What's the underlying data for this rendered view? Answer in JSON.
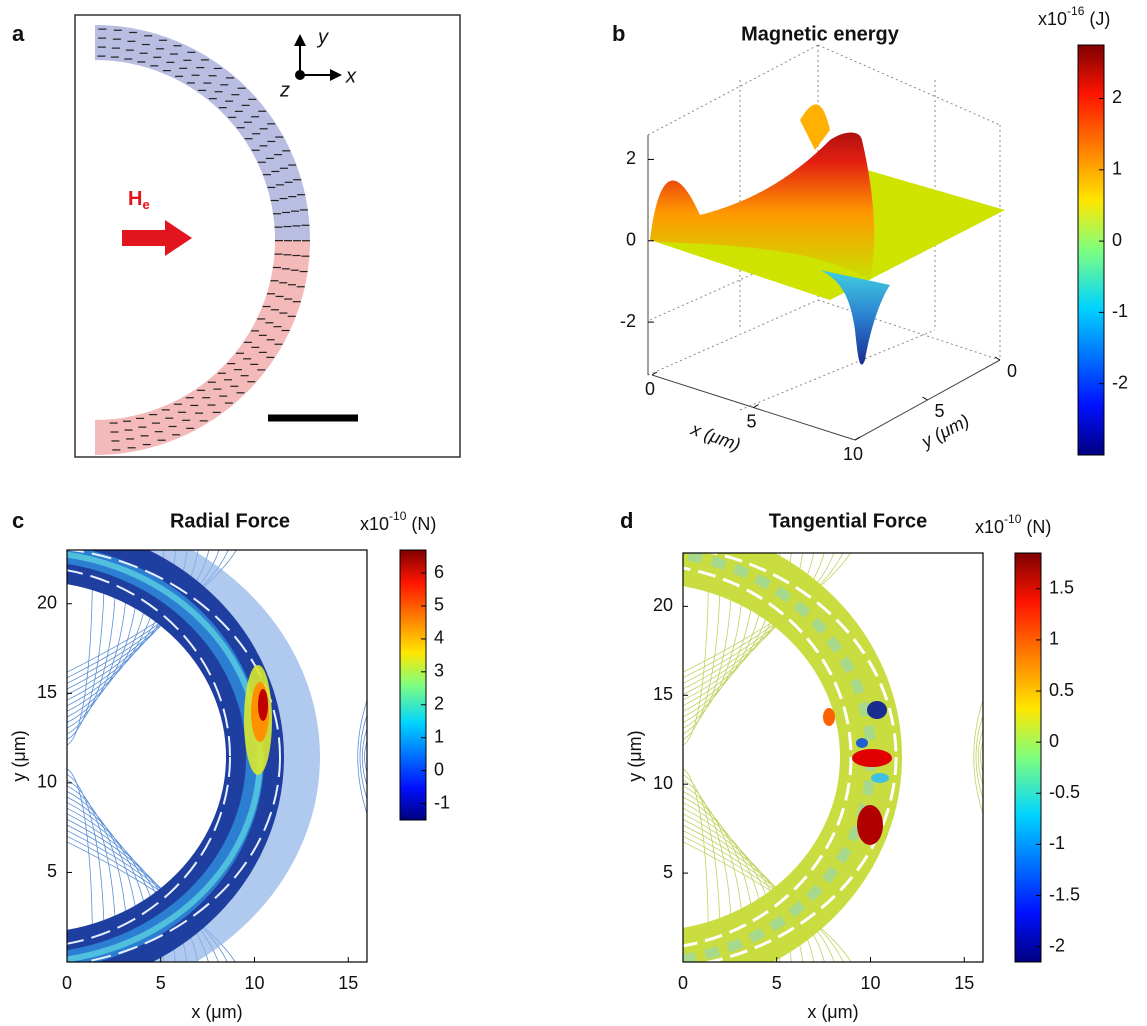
{
  "panels": {
    "a": {
      "label": "a",
      "axis_x": "x",
      "axis_y": "y",
      "axis_z": "z",
      "field": "H",
      "field_sub": "e"
    },
    "b": {
      "label": "b",
      "title": "Magnetic energy",
      "unit_base": "x10",
      "unit_exp": "-16",
      "unit": "(J)",
      "zlim": [
        -3.3,
        2.6
      ],
      "zticks": [
        -2,
        0,
        2
      ],
      "xlim": [
        0,
        10
      ],
      "xticks": [
        0,
        5,
        10
      ],
      "ylim": [
        0,
        10
      ],
      "yticks": [
        0,
        5
      ],
      "xlabel": "x (μm)",
      "ylabel": "y (μm)",
      "colorbar_lim": [
        -3.0,
        2.75
      ],
      "colorbar_ticks": [
        2,
        1,
        0,
        -1,
        -2
      ]
    },
    "c": {
      "label": "c",
      "title": "Radial Force",
      "unit_base": "x10",
      "unit_exp": "-10",
      "unit": "(N)",
      "xlim": [
        0,
        16
      ],
      "ylim": [
        0,
        23
      ],
      "xticks": [
        0,
        5,
        10,
        15
      ],
      "yticks": [
        5,
        10,
        15,
        20
      ],
      "xlabel": "x (μm)",
      "ylabel": "y (μm)",
      "colorbar_lim": [
        -1.5,
        6.7
      ],
      "colorbar_ticks": [
        6,
        5,
        4,
        3,
        2,
        1,
        0,
        -1
      ]
    },
    "d": {
      "label": "d",
      "title": "Tangential Force",
      "unit_base": "x10",
      "unit_exp": "-10",
      "unit": "(N)",
      "xlim": [
        0,
        16
      ],
      "ylim": [
        0,
        23
      ],
      "xticks": [
        0,
        5,
        10,
        15
      ],
      "yticks": [
        5,
        10,
        15,
        20
      ],
      "xlabel": "x (μm)",
      "ylabel": "y (μm)",
      "colorbar_lim": [
        -2.15,
        1.85
      ],
      "colorbar_ticks": [
        1.5,
        1,
        0.5,
        0,
        -0.5,
        -1,
        -1.5,
        -2
      ]
    }
  }
}
